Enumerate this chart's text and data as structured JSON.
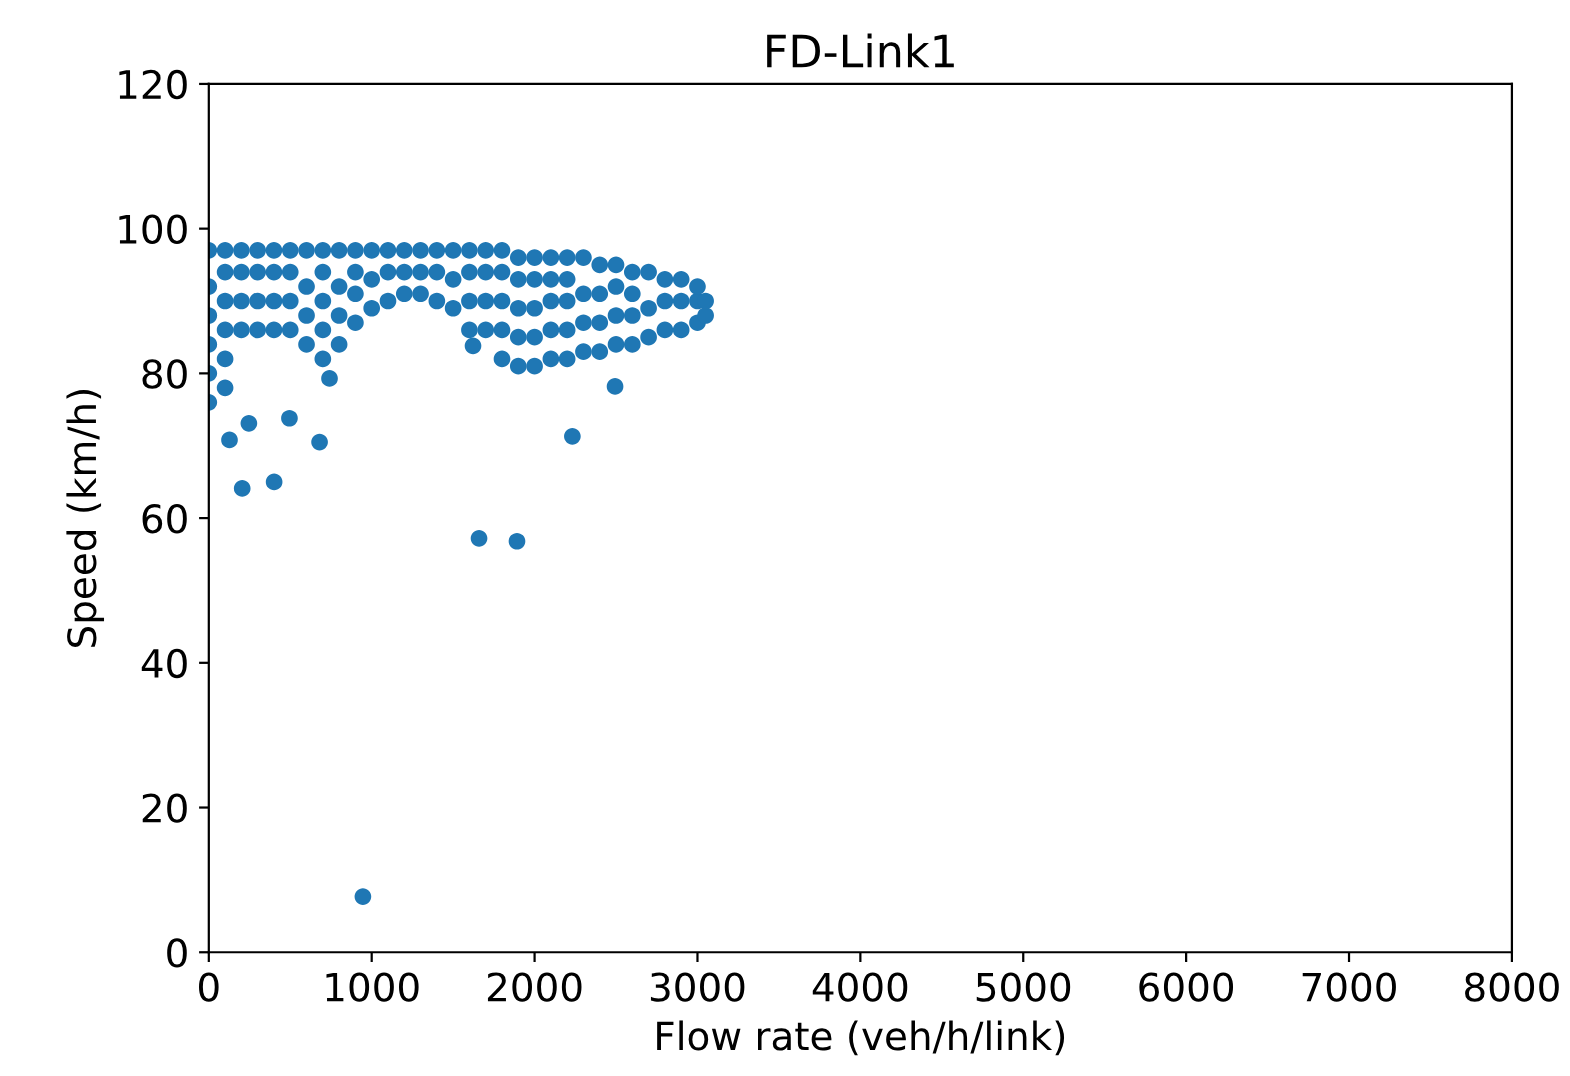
{
  "chart_data": {
    "type": "scatter",
    "title": "FD-Link1",
    "xlabel": "Flow rate (veh/h/link)",
    "ylabel": "Speed (km/h)",
    "xlim": [
      0,
      8000
    ],
    "xticks": [
      0,
      1000,
      2000,
      3000,
      4000,
      5000,
      6000,
      7000,
      8000
    ],
    "ylim": [
      0,
      120
    ],
    "yticks": [
      0,
      20,
      40,
      60,
      80,
      100,
      120
    ],
    "grid": false,
    "marker": "circle",
    "series": [
      {
        "color": "#1f77b4",
        "x": [
          0,
          0,
          0,
          0,
          0,
          0,
          100,
          100,
          100,
          100,
          100,
          100,
          200,
          200,
          200,
          200,
          300,
          300,
          300,
          300,
          400,
          400,
          400,
          400,
          500,
          500,
          500,
          500,
          600,
          600,
          600,
          600,
          700,
          700,
          700,
          700,
          700,
          800,
          800,
          800,
          800,
          900,
          900,
          900,
          900,
          1000,
          1000,
          1000,
          1100,
          1100,
          1100,
          1200,
          1200,
          1200,
          1300,
          1300,
          1300,
          1400,
          1400,
          1400,
          1500,
          1500,
          1500,
          1600,
          1600,
          1600,
          1600,
          1700,
          1700,
          1700,
          1700,
          1800,
          1800,
          1800,
          1800,
          1800,
          1900,
          1900,
          1900,
          1900,
          1900,
          2000,
          2000,
          2000,
          2000,
          2000,
          2100,
          2100,
          2100,
          2100,
          2100,
          2200,
          2200,
          2200,
          2200,
          2200,
          2300,
          2300,
          2300,
          2300,
          2400,
          2400,
          2400,
          2400,
          2500,
          2500,
          2500,
          2500,
          2600,
          2600,
          2600,
          2600,
          2700,
          2700,
          2700,
          2800,
          2800,
          2800,
          2900,
          2900,
          2900,
          3000,
          3000,
          3000,
          3050,
          3050,
          127,
          246,
          495,
          680,
          205,
          401,
          741,
          1622,
          1659,
          1892,
          2232,
          2494,
          946
        ],
        "values": [
          76,
          80,
          84,
          88,
          92,
          97,
          78,
          82,
          86,
          90,
          94,
          97,
          86,
          90,
          94,
          97,
          86,
          90,
          94,
          97,
          86,
          90,
          94,
          97,
          86,
          90,
          94,
          97,
          84,
          88,
          92,
          97,
          82,
          86,
          90,
          94,
          97,
          84,
          88,
          92,
          97,
          87,
          91,
          94,
          97,
          89,
          93,
          97,
          90,
          94,
          97,
          91,
          94,
          97,
          91,
          94,
          97,
          90,
          94,
          97,
          89,
          93,
          97,
          86,
          90,
          94,
          97,
          86,
          90,
          94,
          97,
          82,
          86,
          90,
          94,
          97,
          81,
          85,
          89,
          93,
          96,
          81,
          85,
          89,
          93,
          96,
          82,
          86,
          90,
          93,
          96,
          82,
          86,
          90,
          93,
          96,
          83,
          87,
          91,
          96,
          83,
          87,
          91,
          95,
          84,
          88,
          92,
          95,
          84,
          88,
          91,
          94,
          85,
          89,
          94,
          86,
          90,
          93,
          86,
          90,
          93,
          87,
          90,
          92,
          88,
          90,
          70.8,
          73.1,
          73.8,
          70.5,
          64.1,
          65.0,
          79.3,
          83.8,
          57.2,
          56.8,
          71.3,
          78.2,
          7.7
        ]
      }
    ]
  }
}
